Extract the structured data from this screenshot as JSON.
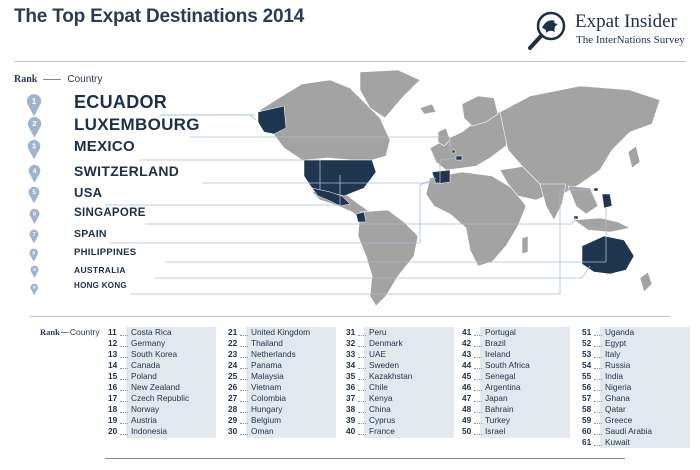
{
  "title": "The Top Expat Destinations 2014",
  "brand": {
    "name": "Expat Insider",
    "subtitle": "The InterNations Survey",
    "icon": "magnifier-bird-icon"
  },
  "legend": {
    "rank": "Rank",
    "country": "Country"
  },
  "legend_small": {
    "rank": "Rank",
    "country": "Country"
  },
  "colors": {
    "navy": "#1f3550",
    "land": "#a3a3a3",
    "pin": "#9eb4cd",
    "panel": "#e3e8ef"
  },
  "top10": [
    {
      "rank": "1",
      "name": "ECUADOR"
    },
    {
      "rank": "2",
      "name": "LUXEMBOURG"
    },
    {
      "rank": "3",
      "name": "MEXICO"
    },
    {
      "rank": "4",
      "name": "SWITZERLAND"
    },
    {
      "rank": "5",
      "name": "USA"
    },
    {
      "rank": "6",
      "name": "SINGAPORE"
    },
    {
      "rank": "7",
      "name": "SPAIN"
    },
    {
      "rank": "8",
      "name": "PHILIPPINES"
    },
    {
      "rank": "9",
      "name": "AUSTRALIA"
    },
    {
      "rank": "10",
      "name": "HONG KONG"
    }
  ],
  "ranks": [
    [
      {
        "rank": "11",
        "name": "Costa Rica"
      },
      {
        "rank": "12",
        "name": "Germany"
      },
      {
        "rank": "13",
        "name": "South Korea"
      },
      {
        "rank": "14",
        "name": "Canada"
      },
      {
        "rank": "15",
        "name": "Poland"
      },
      {
        "rank": "16",
        "name": "New Zealand"
      },
      {
        "rank": "17",
        "name": "Czech Republic"
      },
      {
        "rank": "18",
        "name": "Norway"
      },
      {
        "rank": "19",
        "name": "Austria"
      },
      {
        "rank": "20",
        "name": "Indonesia"
      }
    ],
    [
      {
        "rank": "21",
        "name": "United Kingdom"
      },
      {
        "rank": "22",
        "name": "Thailand"
      },
      {
        "rank": "23",
        "name": "Netherlands"
      },
      {
        "rank": "24",
        "name": "Panama"
      },
      {
        "rank": "25",
        "name": "Malaysia"
      },
      {
        "rank": "26",
        "name": "Vietnam"
      },
      {
        "rank": "27",
        "name": "Colombia"
      },
      {
        "rank": "28",
        "name": "Hungary"
      },
      {
        "rank": "29",
        "name": "Belgium"
      },
      {
        "rank": "30",
        "name": "Oman"
      }
    ],
    [
      {
        "rank": "31",
        "name": "Peru"
      },
      {
        "rank": "32",
        "name": "Denmark"
      },
      {
        "rank": "33",
        "name": "UAE"
      },
      {
        "rank": "34",
        "name": "Sweden"
      },
      {
        "rank": "35",
        "name": "Kazakhstan"
      },
      {
        "rank": "36",
        "name": "Chile"
      },
      {
        "rank": "37",
        "name": "Kenya"
      },
      {
        "rank": "38",
        "name": "China"
      },
      {
        "rank": "39",
        "name": "Cyprus"
      },
      {
        "rank": "40",
        "name": "France"
      }
    ],
    [
      {
        "rank": "41",
        "name": "Portugal"
      },
      {
        "rank": "42",
        "name": "Brazil"
      },
      {
        "rank": "43",
        "name": "Ireland"
      },
      {
        "rank": "44",
        "name": "South Africa"
      },
      {
        "rank": "45",
        "name": "Senegal"
      },
      {
        "rank": "46",
        "name": "Argentina"
      },
      {
        "rank": "47",
        "name": "Japan"
      },
      {
        "rank": "48",
        "name": "Bahrain"
      },
      {
        "rank": "49",
        "name": "Turkey"
      },
      {
        "rank": "50",
        "name": "Israel"
      }
    ],
    [
      {
        "rank": "51",
        "name": "Uganda"
      },
      {
        "rank": "52",
        "name": "Egypt"
      },
      {
        "rank": "53",
        "name": "Italy"
      },
      {
        "rank": "54",
        "name": "Russia"
      },
      {
        "rank": "55",
        "name": "India"
      },
      {
        "rank": "56",
        "name": "Nigeria"
      },
      {
        "rank": "57",
        "name": "Ghana"
      },
      {
        "rank": "58",
        "name": "Qatar"
      },
      {
        "rank": "59",
        "name": "Greece"
      },
      {
        "rank": "60",
        "name": "Saudi Arabia"
      },
      {
        "rank": "61",
        "name": "Kuwait"
      }
    ]
  ]
}
